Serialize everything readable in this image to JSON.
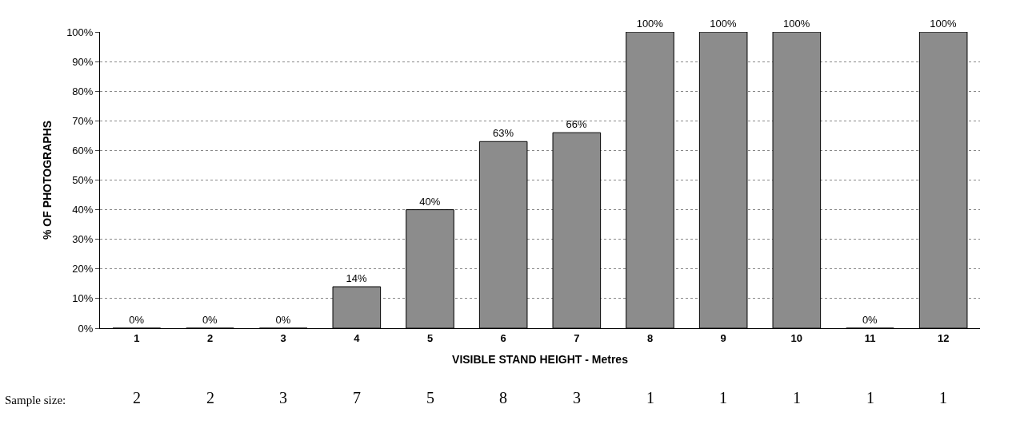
{
  "chart_data": {
    "type": "bar",
    "xlabel": "VISIBLE STAND HEIGHT - Metres",
    "ylabel": "% OF PHOTOGRAPHS",
    "categories": [
      "1",
      "2",
      "3",
      "4",
      "5",
      "6",
      "7",
      "8",
      "9",
      "10",
      "11",
      "12"
    ],
    "values": [
      0,
      0,
      0,
      14,
      40,
      63,
      66,
      100,
      100,
      100,
      0,
      100
    ],
    "value_labels": [
      "0%",
      "0%",
      "0%",
      "14%",
      "40%",
      "63%",
      "66%",
      "100%",
      "100%",
      "100%",
      "0%",
      "100%"
    ],
    "color": "#8c8c8c",
    "ylim": [
      0,
      100
    ],
    "yticks": [
      {
        "value": 0,
        "label": "0%"
      },
      {
        "value": 10,
        "label": "10%"
      },
      {
        "value": 20,
        "label": "20%"
      },
      {
        "value": 30,
        "label": "30%"
      },
      {
        "value": 40,
        "label": "40%"
      },
      {
        "value": 50,
        "label": "50%"
      },
      {
        "value": 60,
        "label": "60%"
      },
      {
        "value": 70,
        "label": "70%"
      },
      {
        "value": 80,
        "label": "80%"
      },
      {
        "value": 90,
        "label": "90%"
      },
      {
        "value": 100,
        "label": "100%"
      }
    ],
    "grid": "y",
    "legend": false,
    "annotations": [
      "Sample size:",
      "2",
      "2",
      "3",
      "7",
      "5",
      "8",
      "3",
      "1",
      "1",
      "1",
      "1",
      "1"
    ]
  }
}
